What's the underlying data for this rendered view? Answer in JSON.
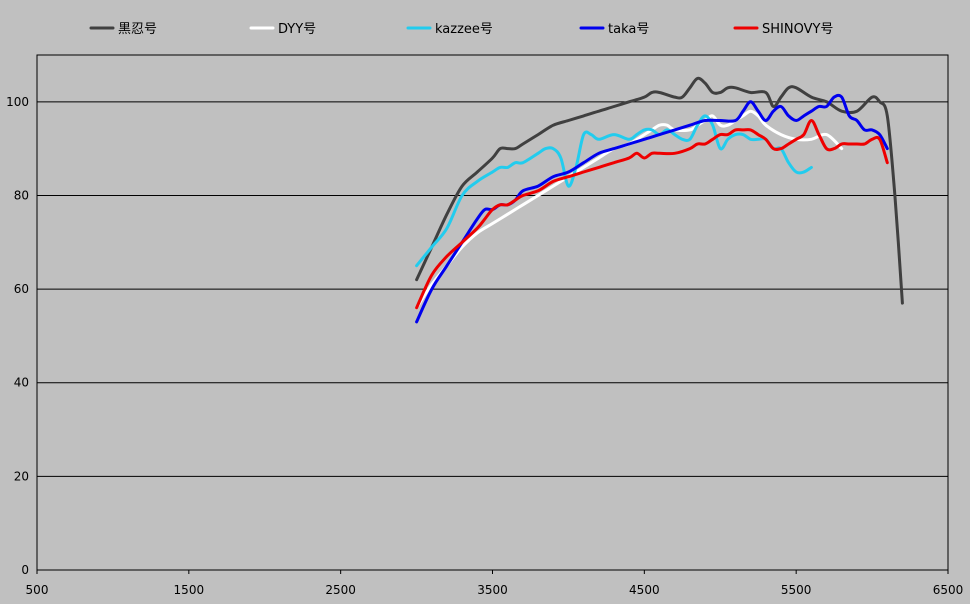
{
  "chart_data": {
    "type": "line",
    "title": "",
    "xlabel": "",
    "ylabel": "",
    "xlim": [
      500,
      6500
    ],
    "ylim": [
      0,
      110
    ],
    "x_ticks": [
      500,
      1500,
      2500,
      3500,
      4500,
      5500,
      6500
    ],
    "y_ticks": [
      0,
      20,
      40,
      60,
      80,
      100
    ],
    "grid": "horizontal",
    "legend_position": "top",
    "background": "#c0c0c0",
    "series": [
      {
        "name": "黒忍号",
        "color": "#404040",
        "x": [
          3000,
          3100,
          3200,
          3300,
          3400,
          3500,
          3550,
          3600,
          3650,
          3700,
          3800,
          3900,
          4000,
          4100,
          4200,
          4300,
          4400,
          4500,
          4550,
          4600,
          4700,
          4750,
          4800,
          4850,
          4900,
          4950,
          5000,
          5050,
          5100,
          5200,
          5300,
          5350,
          5400,
          5450,
          5500,
          5600,
          5700,
          5800,
          5900,
          6000,
          6050,
          6100,
          6150,
          6200
        ],
        "y": [
          62,
          69,
          76,
          82,
          85,
          88,
          90,
          90,
          90,
          91,
          93,
          95,
          96,
          97,
          98,
          99,
          100,
          101,
          102,
          102,
          101,
          101,
          103,
          105,
          104,
          102,
          102,
          103,
          103,
          102,
          102,
          99,
          101,
          103,
          103,
          101,
          100,
          98,
          98,
          101,
          100,
          97,
          80,
          57
        ]
      },
      {
        "name": "DYY号",
        "color": "#ffffff",
        "x": [
          3000,
          3100,
          3200,
          3300,
          3400,
          3500,
          3600,
          3700,
          3800,
          3900,
          4000,
          4100,
          4200,
          4300,
          4400,
          4500,
          4550,
          4600,
          4650,
          4700,
          4800,
          4850,
          4900,
          4950,
          5000,
          5050,
          5100,
          5150,
          5200,
          5250,
          5300,
          5400,
          5500,
          5600,
          5700,
          5800
        ],
        "y": [
          56,
          61,
          65,
          69,
          72,
          74,
          76,
          78,
          80,
          82,
          84,
          86,
          88,
          90,
          91,
          93,
          94,
          95,
          95,
          94,
          94,
          95,
          96,
          97,
          95,
          95,
          96,
          97,
          98,
          97,
          95,
          93,
          92,
          92,
          93,
          90
        ]
      },
      {
        "name": "kazzee号",
        "color": "#22ccee",
        "x": [
          3000,
          3100,
          3200,
          3300,
          3400,
          3500,
          3550,
          3600,
          3650,
          3700,
          3800,
          3850,
          3900,
          3950,
          4000,
          4050,
          4100,
          4150,
          4200,
          4300,
          4400,
          4450,
          4500,
          4550,
          4600,
          4650,
          4700,
          4750,
          4800,
          4850,
          4900,
          4950,
          5000,
          5050,
          5100,
          5150,
          5200,
          5250,
          5300,
          5350,
          5400,
          5450,
          5500,
          5550,
          5600
        ],
        "y": [
          65,
          69,
          73,
          80,
          83,
          85,
          86,
          86,
          87,
          87,
          89,
          90,
          90,
          88,
          82,
          86,
          93,
          93,
          92,
          93,
          92,
          93,
          94,
          94,
          93,
          94,
          93,
          92,
          92,
          95,
          97,
          95,
          90,
          92,
          93,
          93,
          92,
          92,
          92,
          90,
          90,
          87,
          85,
          85,
          86
        ]
      },
      {
        "name": "taka号",
        "color": "#0000ee",
        "x": [
          3000,
          3100,
          3200,
          3300,
          3400,
          3450,
          3500,
          3550,
          3600,
          3650,
          3700,
          3800,
          3900,
          4000,
          4100,
          4200,
          4300,
          4400,
          4500,
          4600,
          4700,
          4800,
          4900,
          5000,
          5100,
          5150,
          5200,
          5250,
          5300,
          5350,
          5400,
          5450,
          5500,
          5550,
          5600,
          5650,
          5700,
          5750,
          5800,
          5850,
          5900,
          5950,
          6000,
          6050,
          6100
        ],
        "y": [
          53,
          60,
          65,
          70,
          75,
          77,
          77,
          78,
          78,
          79,
          81,
          82,
          84,
          85,
          87,
          89,
          90,
          91,
          92,
          93,
          94,
          95,
          96,
          96,
          96,
          98,
          100,
          98,
          96,
          98,
          99,
          97,
          96,
          97,
          98,
          99,
          99,
          101,
          101,
          97,
          96,
          94,
          94,
          93,
          90
        ]
      },
      {
        "name": "SHINOVY号",
        "color": "#ee0000",
        "x": [
          3000,
          3100,
          3200,
          3300,
          3400,
          3450,
          3500,
          3550,
          3600,
          3650,
          3700,
          3800,
          3900,
          4000,
          4100,
          4200,
          4300,
          4400,
          4450,
          4500,
          4550,
          4600,
          4700,
          4800,
          4850,
          4900,
          4950,
          5000,
          5050,
          5100,
          5150,
          5200,
          5250,
          5300,
          5350,
          5400,
          5450,
          5500,
          5550,
          5600,
          5650,
          5700,
          5750,
          5800,
          5850,
          5900,
          5950,
          6000,
          6050,
          6100
        ],
        "y": [
          56,
          63,
          67,
          70,
          73,
          75,
          77,
          78,
          78,
          79,
          80,
          81,
          83,
          84,
          85,
          86,
          87,
          88,
          89,
          88,
          89,
          89,
          89,
          90,
          91,
          91,
          92,
          93,
          93,
          94,
          94,
          94,
          93,
          92,
          90,
          90,
          91,
          92,
          93,
          96,
          93,
          90,
          90,
          91,
          91,
          91,
          91,
          92,
          92,
          87
        ]
      }
    ]
  }
}
